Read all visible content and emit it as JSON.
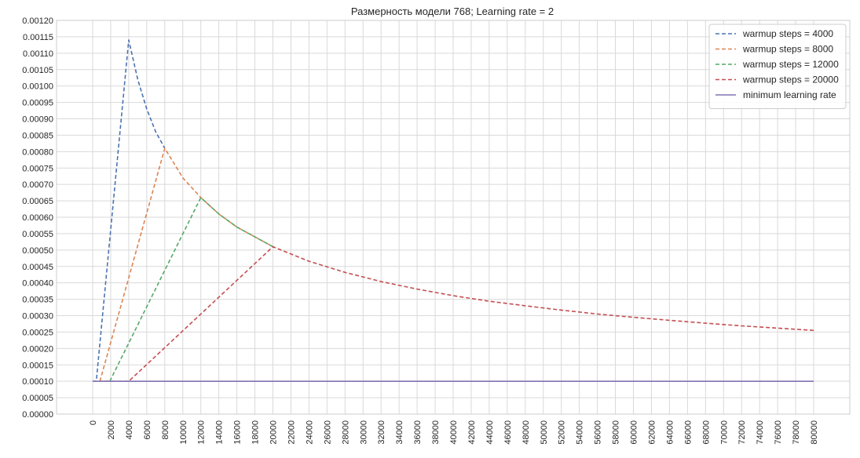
{
  "chart_data": {
    "type": "line",
    "title": "Размерность модели 768; Learning rate = 2",
    "xlabel": "",
    "ylabel": "",
    "xlim": [
      0,
      80000
    ],
    "ylim": [
      0.0,
      0.0012
    ],
    "x_ticks": [
      0,
      2000,
      4000,
      6000,
      8000,
      10000,
      12000,
      14000,
      16000,
      18000,
      20000,
      22000,
      24000,
      26000,
      28000,
      30000,
      32000,
      34000,
      36000,
      38000,
      40000,
      42000,
      44000,
      46000,
      48000,
      50000,
      52000,
      54000,
      56000,
      58000,
      60000,
      62000,
      64000,
      66000,
      68000,
      70000,
      72000,
      74000,
      76000,
      78000,
      80000
    ],
    "y_ticks": [
      "0.00000",
      "0.00005",
      "0.00010",
      "0.00015",
      "0.00020",
      "0.00025",
      "0.00030",
      "0.00035",
      "0.00040",
      "0.00045",
      "0.00050",
      "0.00055",
      "0.00060",
      "0.00065",
      "0.00070",
      "0.00075",
      "0.00080",
      "0.00085",
      "0.00090",
      "0.00095",
      "0.00100",
      "0.00105",
      "0.00110",
      "0.00115",
      "0.00120"
    ],
    "grid": true,
    "legend_position": "top-right",
    "series": [
      {
        "name": "warmup steps = 4000",
        "color": "#4c72b0",
        "style": "dashed",
        "x": [
          0,
          400,
          4000,
          5000,
          6000,
          7000,
          8000
        ],
        "y": [
          0.0001,
          0.0001,
          0.00114,
          0.00102,
          0.00093,
          0.00086,
          0.00081
        ]
      },
      {
        "name": "warmup steps = 8000",
        "color": "#dd8452",
        "style": "dashed",
        "x": [
          800,
          8000,
          10000,
          12000,
          14000,
          16000,
          18000,
          20000
        ],
        "y": [
          0.0001,
          0.00081,
          0.00072,
          0.00066,
          0.00061,
          0.00057,
          0.00054,
          0.00051
        ]
      },
      {
        "name": "warmup steps = 12000",
        "color": "#55a868",
        "style": "dashed",
        "x": [
          1200,
          1900,
          12000,
          14000,
          16000,
          18000,
          20000
        ],
        "y": [
          0.0001,
          0.0001,
          0.00066,
          0.00061,
          0.00057,
          0.00054,
          0.00051
        ]
      },
      {
        "name": "warmup steps = 20000",
        "color": "#c44e52",
        "style": "dashed",
        "x": [
          0,
          4000,
          20000,
          24000,
          28000,
          32000,
          36000,
          40000,
          44000,
          48000,
          52000,
          56000,
          60000,
          64000,
          68000,
          72000,
          76000,
          80000
        ],
        "y": [
          0.0001,
          0.0001,
          0.00051,
          0.000466,
          0.000432,
          0.000404,
          0.000381,
          0.000361,
          0.000344,
          0.00033,
          0.000317,
          0.000305,
          0.000295,
          0.000286,
          0.000277,
          0.000269,
          0.000262,
          0.000255
        ]
      },
      {
        "name": "minimum learning rate",
        "color": "#8172b3",
        "style": "solid",
        "x": [
          0,
          80000
        ],
        "y": [
          0.0001,
          0.0001
        ]
      }
    ]
  }
}
